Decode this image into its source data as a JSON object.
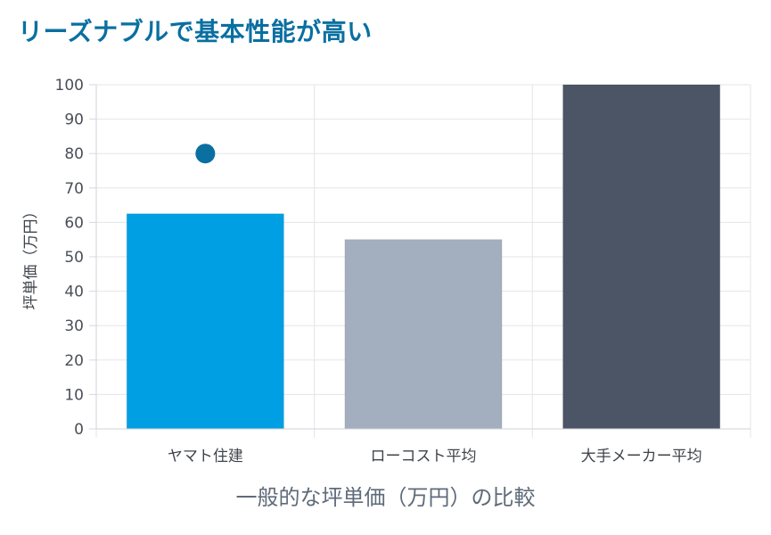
{
  "heading": "リーズナブルで基本性能が高い",
  "caption": "一般的な坪単価（万円）の比較",
  "chart_data": {
    "type": "bar",
    "categories": [
      "ヤマト住建",
      "ローコスト平均",
      "大手メーカー平均"
    ],
    "values": [
      62.5,
      55,
      100
    ],
    "point_series": {
      "category": "ヤマト住建",
      "value": 80,
      "color": "#0a6fa1"
    },
    "bar_colors": [
      "#009fe3",
      "#a3afbf",
      "#4b5565"
    ],
    "ylabel": "坪単価（万円）",
    "ylim": [
      0,
      100
    ],
    "yticks": [
      0,
      10,
      20,
      30,
      40,
      50,
      60,
      70,
      80,
      90,
      100
    ],
    "grid": true
  }
}
